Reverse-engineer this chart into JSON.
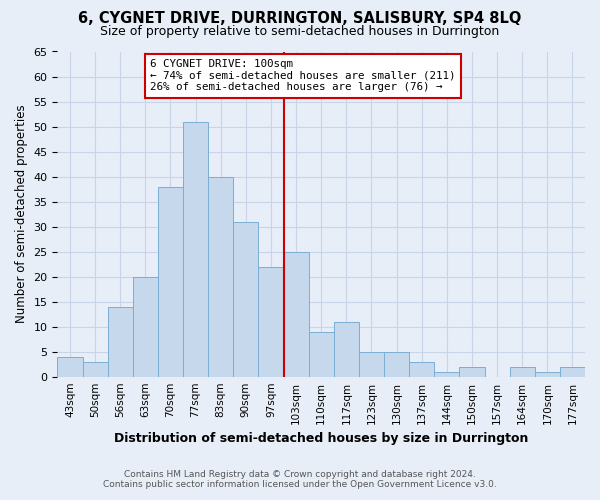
{
  "title": "6, CYGNET DRIVE, DURRINGTON, SALISBURY, SP4 8LQ",
  "subtitle": "Size of property relative to semi-detached houses in Durrington",
  "xlabel": "Distribution of semi-detached houses by size in Durrington",
  "ylabel": "Number of semi-detached properties",
  "bin_labels": [
    "43sqm",
    "50sqm",
    "56sqm",
    "63sqm",
    "70sqm",
    "77sqm",
    "83sqm",
    "90sqm",
    "97sqm",
    "103sqm",
    "110sqm",
    "117sqm",
    "123sqm",
    "130sqm",
    "137sqm",
    "144sqm",
    "150sqm",
    "157sqm",
    "164sqm",
    "170sqm",
    "177sqm"
  ],
  "bar_values": [
    4,
    3,
    14,
    20,
    38,
    51,
    40,
    31,
    22,
    25,
    9,
    11,
    5,
    5,
    3,
    1,
    2,
    0,
    2,
    1,
    2
  ],
  "bar_color": "#c5d8ec",
  "bar_edge_color": "#7badd4",
  "grid_color": "#c8d4e8",
  "background_color": "#e8eef8",
  "vline_after_index": 8,
  "vline_color": "#cc0000",
  "annotation_text": "6 CYGNET DRIVE: 100sqm\n← 74% of semi-detached houses are smaller (211)\n26% of semi-detached houses are larger (76) →",
  "annotation_box_color": "#ffffff",
  "annotation_box_edge": "#cc0000",
  "ylim": [
    0,
    65
  ],
  "yticks": [
    0,
    5,
    10,
    15,
    20,
    25,
    30,
    35,
    40,
    45,
    50,
    55,
    60,
    65
  ],
  "footer_line1": "Contains HM Land Registry data © Crown copyright and database right 2024.",
  "footer_line2": "Contains public sector information licensed under the Open Government Licence v3.0."
}
